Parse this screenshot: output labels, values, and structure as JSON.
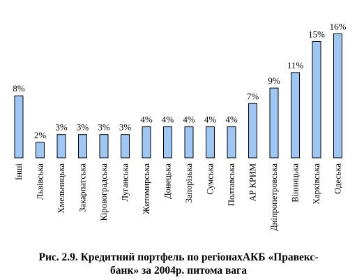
{
  "chart_data": {
    "type": "bar",
    "categories": [
      "Інші",
      "Львівська",
      "Хмельницька",
      "Закарпатська",
      "Кіровоградська",
      "Луганська",
      "Житомирська",
      "Донецька",
      "Запорізька",
      "Сумська",
      "Полтавська",
      "АР КРИМ",
      "Дніпропетровська",
      "Вінницька",
      "Харківська",
      "Одеська"
    ],
    "values": [
      8,
      2,
      3,
      3,
      3,
      3,
      4,
      4,
      4,
      4,
      4,
      7,
      9,
      11,
      15,
      16
    ],
    "value_labels": [
      "8%",
      "2%",
      "3%",
      "3%",
      "3%",
      "3%",
      "4%",
      "4%",
      "4%",
      "4%",
      "4%",
      "7%",
      "9%",
      "11%",
      "15%",
      "16%"
    ],
    "unit": "%",
    "ylim": [
      0,
      16
    ],
    "grid": false,
    "bar_color": "#9fc7f3",
    "bar_edge_color": "#000000"
  },
  "caption": {
    "line1": "Рис. 2.9. Кредитний портфель по регіонахАКБ «Правекс-",
    "line2": "банк» за 2004р. питома вага"
  }
}
